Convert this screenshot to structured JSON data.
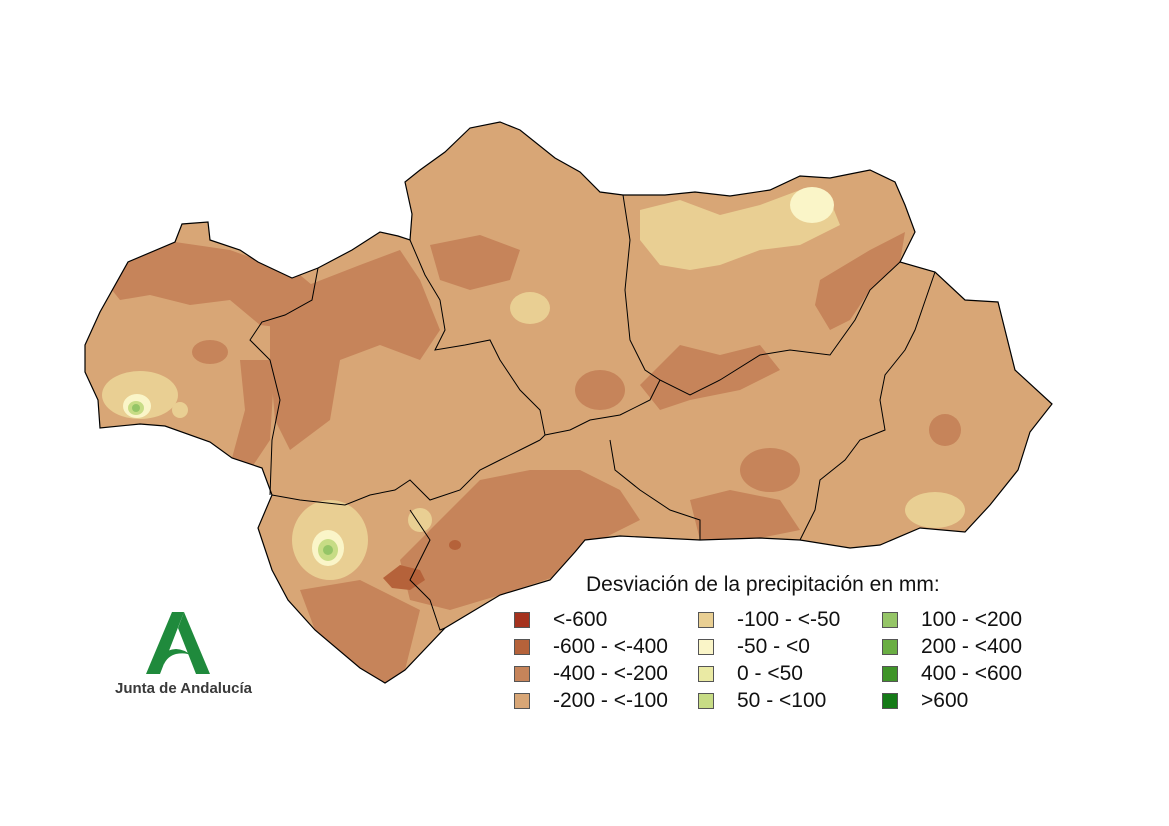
{
  "legend": {
    "title": "Desviación de la precipitación en mm:",
    "items": [
      {
        "label": "<-600",
        "color": "#a5321e"
      },
      {
        "label": "-600 - <-400",
        "color": "#b5623a"
      },
      {
        "label": "-400 - <-200",
        "color": "#c6845a"
      },
      {
        "label": "-200 - <-100",
        "color": "#d8a676"
      },
      {
        "label": "-100 - <-50",
        "color": "#e9cf93"
      },
      {
        "label": "-50 - <0",
        "color": "#faf5c8"
      },
      {
        "label": "0 - <50",
        "color": "#eaeaa4"
      },
      {
        "label": "50 - <100",
        "color": "#c7dc85"
      },
      {
        "label": "100 - <200",
        "color": "#95c567"
      },
      {
        "label": "200 - <400",
        "color": "#6aae43"
      },
      {
        "label": "400 - <600",
        "color": "#3f9428"
      },
      {
        "label": ">600",
        "color": "#157a17"
      }
    ]
  },
  "logo": {
    "text": "Junta de Andalucía",
    "color": "#1f8a3c"
  },
  "map": {
    "base_color": "#d8a676",
    "border_color": "#000000"
  }
}
